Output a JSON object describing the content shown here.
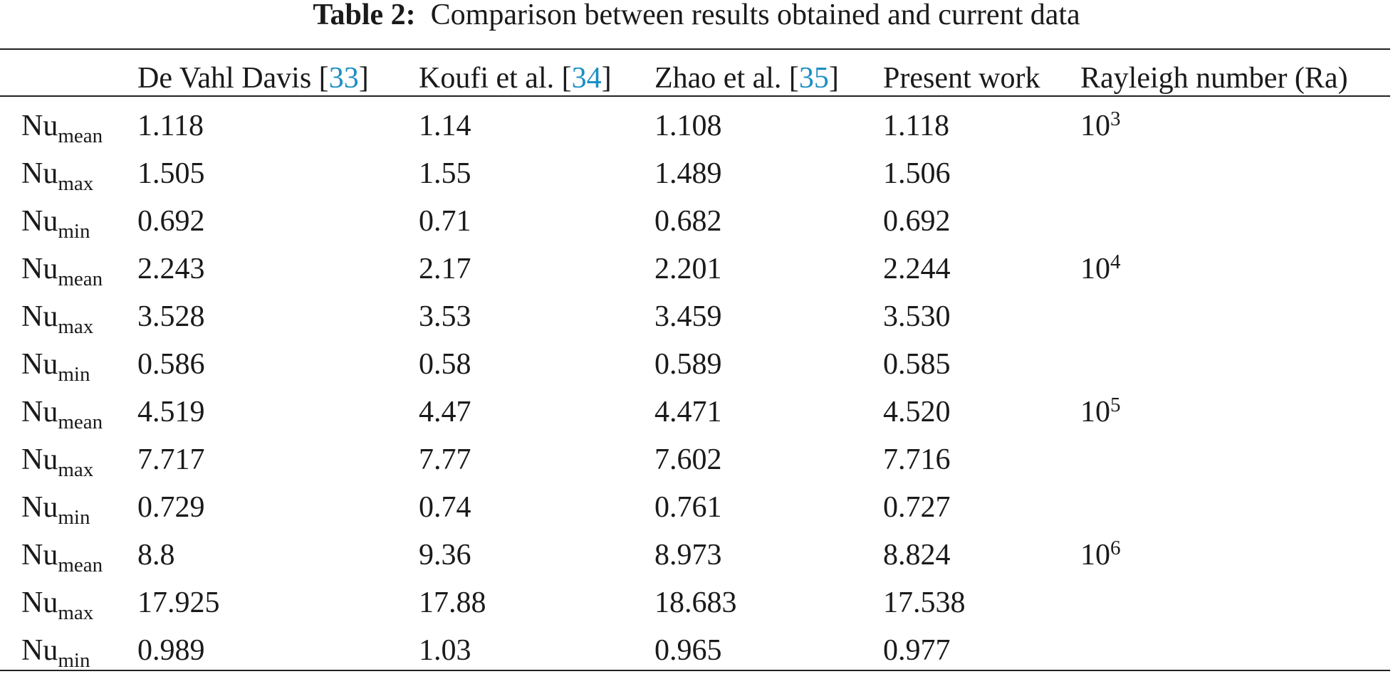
{
  "caption": {
    "label": "Table 2:",
    "text": "Comparison between results obtained and current data"
  },
  "table": {
    "header": [
      [
        "De Vahl Davis [",
        "33",
        "]"
      ],
      [
        "Koufi et al. [",
        "34",
        "]"
      ],
      [
        "Zhao et al. [",
        "35",
        "]"
      ],
      [
        "Present work"
      ],
      [
        "Rayleigh number (Ra)"
      ]
    ],
    "rows": [
      {
        "label": [
          "Nu",
          "mean"
        ],
        "values": [
          "1.118",
          "1.14",
          "1.108",
          "1.118"
        ],
        "ra": [
          "10",
          "3"
        ]
      },
      {
        "label": [
          "Nu",
          "max"
        ],
        "values": [
          "1.505",
          "1.55",
          "1.489",
          "1.506"
        ]
      },
      {
        "label": [
          "Nu",
          "min"
        ],
        "values": [
          "0.692",
          "0.71",
          "0.682",
          "0.692"
        ]
      },
      {
        "label": [
          "Nu",
          "mean"
        ],
        "values": [
          "2.243",
          "2.17",
          "2.201",
          "2.244"
        ],
        "ra": [
          "10",
          "4"
        ]
      },
      {
        "label": [
          "Nu",
          "max"
        ],
        "values": [
          "3.528",
          "3.53",
          "3.459",
          "3.530"
        ]
      },
      {
        "label": [
          "Nu",
          "min"
        ],
        "values": [
          "0.586",
          "0.58",
          "0.589",
          "0.585"
        ]
      },
      {
        "label": [
          "Nu",
          "mean"
        ],
        "values": [
          "4.519",
          "4.47",
          "4.471",
          "4.520"
        ],
        "ra": [
          "10",
          "5"
        ]
      },
      {
        "label": [
          "Nu",
          "max"
        ],
        "values": [
          "7.717",
          "7.77",
          "7.602",
          "7.716"
        ]
      },
      {
        "label": [
          "Nu",
          "min"
        ],
        "values": [
          "0.729",
          "0.74",
          "0.761",
          "0.727"
        ]
      },
      {
        "label": [
          "Nu",
          "mean"
        ],
        "values": [
          "8.8",
          "9.36",
          "8.973",
          "8.824"
        ],
        "ra": [
          "10",
          "6"
        ]
      },
      {
        "label": [
          "Nu",
          "max"
        ],
        "values": [
          "17.925",
          "17.88",
          "18.683",
          "17.538"
        ]
      },
      {
        "label": [
          "Nu",
          "min"
        ],
        "values": [
          "0.989",
          "1.03",
          "0.965",
          "0.977"
        ]
      }
    ]
  }
}
